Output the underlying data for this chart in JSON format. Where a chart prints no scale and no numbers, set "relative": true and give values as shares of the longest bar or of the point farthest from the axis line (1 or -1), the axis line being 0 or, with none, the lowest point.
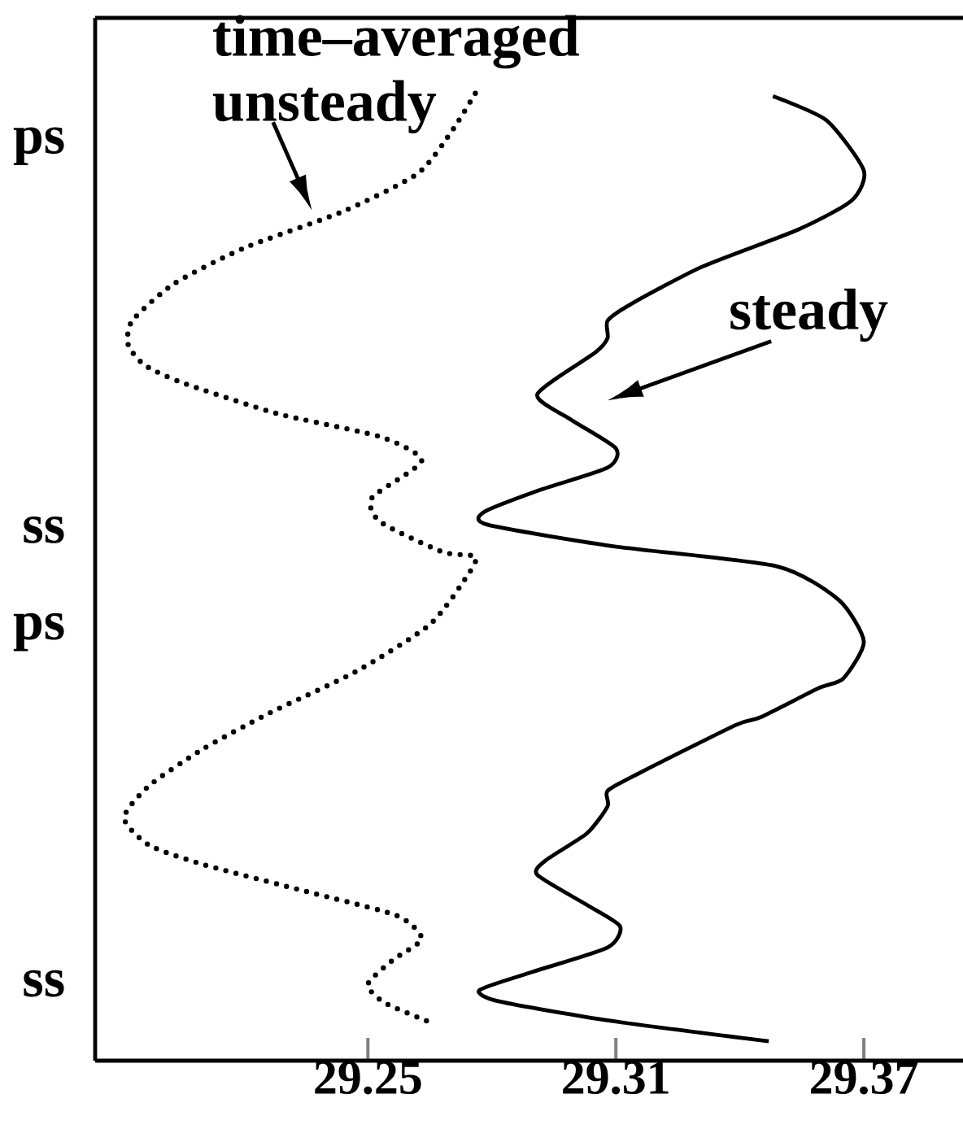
{
  "chart_data": {
    "type": "line",
    "relative": true,
    "xlim": [
      29.184,
      29.394
    ],
    "xticks": [
      29.25,
      29.31,
      29.37
    ],
    "grid": false,
    "marker": "none",
    "annotations": [
      "time–averaged unsteady",
      "ps",
      "steady",
      "ss",
      "ps",
      "ss"
    ],
    "series": [
      {
        "color": "#000000",
        "line_style": "solid",
        "x": [
          29.348,
          29.361,
          29.37,
          29.367,
          29.354,
          29.331,
          29.314,
          29.308,
          29.308,
          29.305,
          29.291,
          29.299,
          29.31,
          29.308,
          29.291,
          29.278,
          29.279,
          29.309,
          29.349,
          29.364,
          29.37,
          29.365,
          29.359,
          29.345,
          29.339,
          29.316,
          29.308,
          29.308,
          29.303,
          29.293,
          29.291,
          29.303,
          29.311,
          29.308,
          29.29,
          29.277,
          29.282,
          29.309,
          29.347
        ],
        "values": [
          0.997,
          0.972,
          0.92,
          0.889,
          0.859,
          0.821,
          0.783,
          0.765,
          0.747,
          0.732,
          0.689,
          0.663,
          0.633,
          0.613,
          0.589,
          0.567,
          0.554,
          0.532,
          0.511,
          0.476,
          0.433,
          0.395,
          0.385,
          0.355,
          0.347,
          0.298,
          0.279,
          0.263,
          0.235,
          0.207,
          0.192,
          0.161,
          0.139,
          0.117,
          0.092,
          0.073,
          0.061,
          0.041,
          0.02
        ]
      },
      {
        "color": "#000000",
        "line_style": "dotted",
        "x": [
          29.276,
          29.27,
          29.262,
          29.244,
          29.22,
          29.203,
          29.193,
          29.192,
          29.196,
          29.205,
          29.228,
          29.253,
          29.263,
          29.251,
          29.253,
          29.268,
          29.276,
          29.274,
          29.265,
          29.247,
          29.226,
          29.21,
          29.197,
          29.191,
          29.197,
          29.21,
          29.235,
          29.257,
          29.263,
          29.256,
          29.25,
          29.254,
          29.266
        ],
        "values": [
          1.0,
          0.959,
          0.917,
          0.878,
          0.84,
          0.803,
          0.765,
          0.74,
          0.719,
          0.701,
          0.669,
          0.645,
          0.62,
          0.582,
          0.557,
          0.526,
          0.521,
          0.501,
          0.451,
          0.402,
          0.359,
          0.322,
          0.284,
          0.251,
          0.223,
          0.203,
          0.175,
          0.15,
          0.126,
          0.104,
          0.079,
          0.06,
          0.038
        ]
      }
    ]
  }
}
